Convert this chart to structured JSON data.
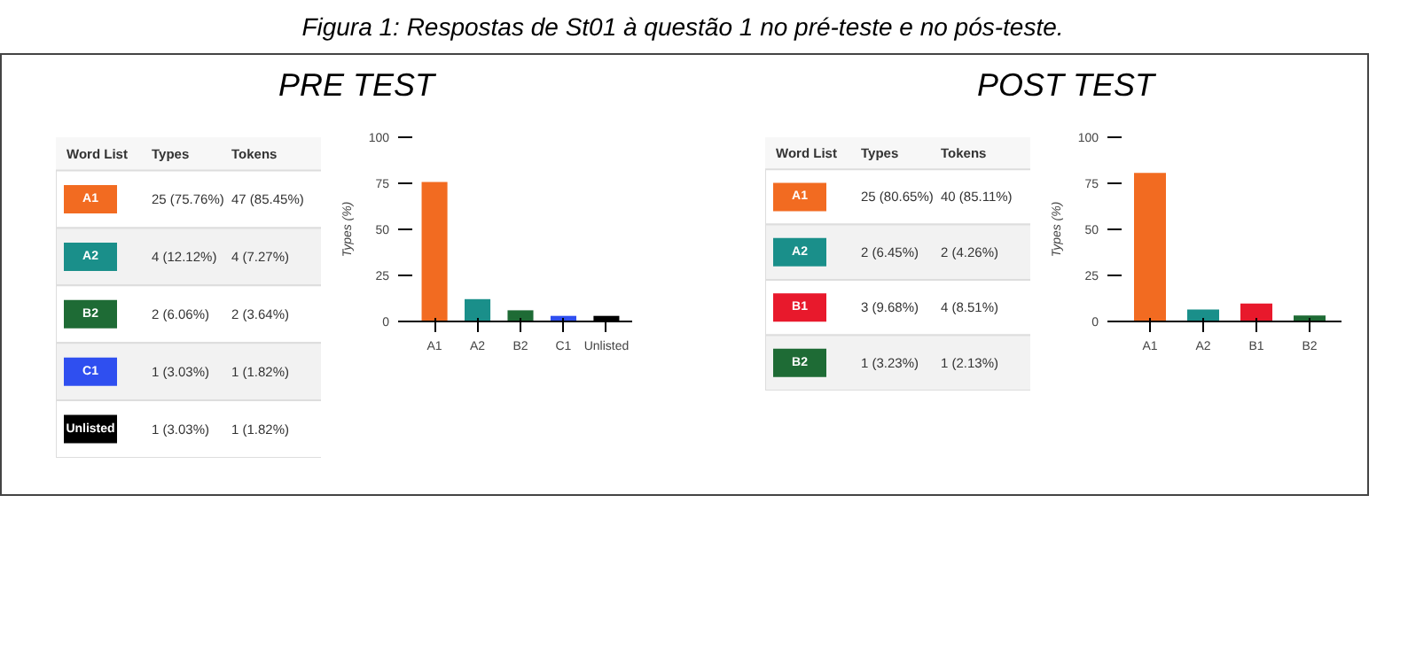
{
  "chart_data": [
    {
      "type": "other",
      "title": "Figura 1: Respostas de St01 à questão 1 no pré-teste e no pós-teste."
    },
    {
      "type": "other",
      "title": "PRE TEST",
      "colors": [
        "#f26b21",
        "#1a8f8a",
        "#1e6b35",
        "#2f4ff0",
        "#000000"
      ],
      "annotations": [
        "Word List",
        "Types",
        "Tokens",
        "A1",
        "25 (75.76%)",
        "47 (85.45%)",
        "A2",
        "4 (12.12%)",
        "4 (7.27%)",
        "B2",
        "2 (6.06%)",
        "2 (3.64%)",
        "C1",
        "1 (3.03%)",
        "1 (1.82%)",
        "Unlisted",
        "1 (3.03%)",
        "1 (1.82%)"
      ]
    },
    {
      "type": "bar",
      "categories": [
        "A1",
        "A2",
        "B2",
        "C1",
        "Unlisted"
      ],
      "values": [
        75.76,
        12.12,
        6.06,
        3.03,
        3.03
      ],
      "colors": [
        "#f26b21",
        "#1a8f8a",
        "#1e6b35",
        "#2f4ff0",
        "#000000"
      ],
      "ylabel": "Types (%)",
      "ylim": [
        0,
        100
      ],
      "yticks": [
        0,
        25,
        50,
        75,
        100
      ]
    },
    {
      "type": "other",
      "title": "POST TEST",
      "colors": [
        "#f26b21",
        "#1a8f8a",
        "#e8192c",
        "#1e6b35"
      ],
      "annotations": [
        "Word List",
        "Types",
        "Tokens",
        "A1",
        "25 (80.65%)",
        "40 (85.11%)",
        "A2",
        "2 (6.45%)",
        "2 (4.26%)",
        "B1",
        "3 (9.68%)",
        "4 (8.51%)",
        "B2",
        "1 (3.23%)",
        "1 (2.13%)"
      ]
    },
    {
      "type": "bar",
      "categories": [
        "A1",
        "A2",
        "B1",
        "B2"
      ],
      "values": [
        80.65,
        6.45,
        9.68,
        3.23
      ],
      "colors": [
        "#f26b21",
        "#1a8f8a",
        "#e8192c",
        "#1e6b35"
      ],
      "ylabel": "Types (%)",
      "ylim": [
        0,
        100
      ],
      "yticks": [
        0,
        25,
        50,
        75,
        100
      ]
    }
  ]
}
